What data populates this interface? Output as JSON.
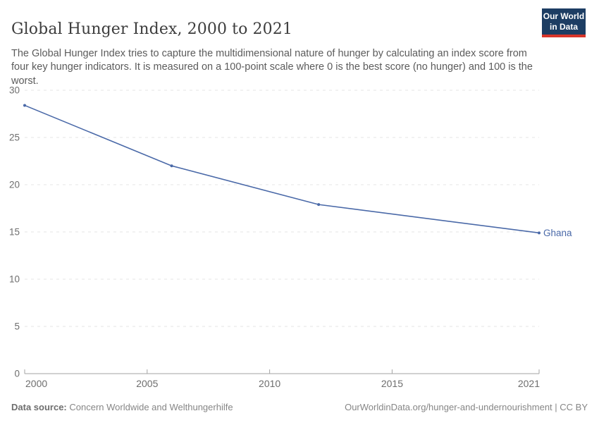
{
  "header": {
    "title": "Global Hunger Index, 2000 to 2021",
    "subtitle": "The Global Hunger Index tries to capture the multidimensional nature of hunger by calculating an index score from four key hunger indicators. It is measured on a 100-point scale where 0 is the best score (no hunger) and 100 is the worst.",
    "logo": {
      "line1": "Our World",
      "line2": "in Data",
      "bg_color": "#1d3d63",
      "stripe_color": "#d8352a"
    }
  },
  "chart_data": {
    "type": "line",
    "title": "Global Hunger Index, 2000 to 2021",
    "xlabel": "",
    "ylabel": "",
    "xlim": [
      2000,
      2021
    ],
    "ylim": [
      0,
      30
    ],
    "xticks": [
      2000,
      2005,
      2010,
      2015,
      2021
    ],
    "yticks": [
      0,
      5,
      10,
      15,
      20,
      25,
      30
    ],
    "grid": "horizontal-dashed",
    "legend_position": "end-of-line-label",
    "series": [
      {
        "name": "Ghana",
        "color": "#4a69a8",
        "x": [
          2000,
          2006,
          2012,
          2021
        ],
        "values": [
          28.4,
          22.0,
          17.9,
          14.9
        ]
      }
    ]
  },
  "footer": {
    "source_label": "Data source:",
    "source_value": " Concern Worldwide and Welthungerhilfe",
    "attribution": "OurWorldinData.org/hunger-and-undernourishment | CC BY"
  },
  "colors": {
    "line": "#4a69a8",
    "grid": "#e5e5e5",
    "axis": "#a3a3a3",
    "tick_text": "#6e6e6e",
    "entity_label": "#4a69a8"
  }
}
